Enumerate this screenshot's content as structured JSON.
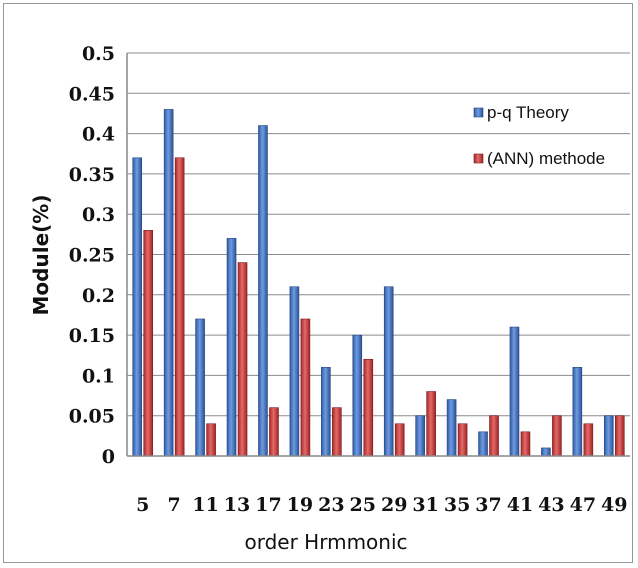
{
  "chart_data": {
    "type": "bar",
    "xlabel": "order Hrmmonic",
    "ylabel": "Module(%)",
    "ylim": [
      0,
      0.5
    ],
    "yticks": [
      "0",
      "0.05",
      "0.1",
      "0.15",
      "0.2",
      "0.25",
      "0.3",
      "0.35",
      "0.4",
      "0.45",
      "0.5"
    ],
    "categories": [
      "5",
      "7",
      "11",
      "13",
      "17",
      "19",
      "23",
      "25",
      "29",
      "31",
      "35",
      "37",
      "41",
      "43",
      "47",
      "49"
    ],
    "series": [
      {
        "name": "p-q Theory",
        "color": "#4a7bc8",
        "values": [
          0.37,
          0.43,
          0.17,
          0.27,
          0.41,
          0.21,
          0.11,
          0.15,
          0.21,
          0.05,
          0.07,
          0.03,
          0.16,
          0.01,
          0.11,
          0.05
        ]
      },
      {
        "name": "(ANN) methode",
        "color": "#c83c3c",
        "values": [
          0.28,
          0.37,
          0.04,
          0.24,
          0.06,
          0.17,
          0.06,
          0.12,
          0.04,
          0.08,
          0.04,
          0.05,
          0.03,
          0.05,
          0.04,
          0.05
        ]
      }
    ],
    "grid": true,
    "legend_position": "right"
  }
}
